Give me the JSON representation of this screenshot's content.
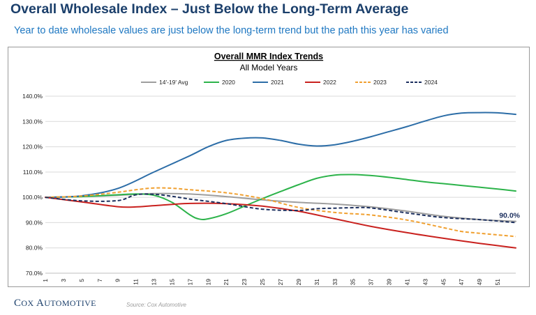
{
  "header": {
    "title": "Overall Wholesale Index – Just Below the Long-Term Average",
    "subtitle": "Year to date wholesale values are just below the long-term trend but the path this year has varied"
  },
  "footer": {
    "logo_text_cap1": "C",
    "logo_text_rest1": "OX ",
    "logo_text_cap2": "A",
    "logo_text_rest2": "UTOMOTIVE",
    "source": "Source: Cox Automotive"
  },
  "chart_data": {
    "type": "line",
    "title": "Overall MMR Index Trends",
    "subtitle": "All Model Years",
    "x_ticks": [
      "1",
      "3",
      "5",
      "7",
      "9",
      "11",
      "13",
      "15",
      "17",
      "19",
      "21",
      "23",
      "25",
      "27",
      "29",
      "31",
      "33",
      "35",
      "37",
      "39",
      "41",
      "43",
      "45",
      "47",
      "49",
      "51"
    ],
    "x_range": [
      1,
      53
    ],
    "ylim": [
      70,
      140
    ],
    "y_ticks": [
      "70.0%",
      "80.0%",
      "90.0%",
      "100.0%",
      "110.0%",
      "120.0%",
      "130.0%",
      "140.0%"
    ],
    "grid": "horizontal",
    "legend_position": "top",
    "annotation": {
      "text": "90.0%",
      "x": 53,
      "y": 90.0
    },
    "series": [
      {
        "name": "14'-19' Avg",
        "color": "#9e9e9e",
        "dash": "solid",
        "x": [
          1,
          5,
          9,
          13,
          17,
          21,
          25,
          29,
          33,
          37,
          41,
          45,
          49,
          53
        ],
        "y": [
          100,
          100.3,
          100.8,
          101.5,
          101.3,
          100.3,
          99,
          98,
          97.3,
          96.2,
          94.5,
          92.5,
          91.2,
          90.5
        ]
      },
      {
        "name": "2020",
        "color": "#2cb34a",
        "dash": "solid",
        "x": [
          1,
          5,
          9,
          11,
          13,
          15,
          17,
          18,
          19,
          21,
          23,
          25,
          27,
          29,
          31,
          33,
          35,
          37,
          39,
          41,
          43,
          45,
          47,
          49,
          51,
          53
        ],
        "y": [
          100,
          100.3,
          101,
          101.3,
          100.8,
          98,
          93,
          91.4,
          91.5,
          93.5,
          96.5,
          99.5,
          102.3,
          105,
          107.5,
          108.8,
          109,
          108.6,
          107.9,
          107,
          106.1,
          105.4,
          104.7,
          104,
          103.3,
          102.5
        ]
      },
      {
        "name": "2021",
        "color": "#2c6da7",
        "dash": "solid",
        "x": [
          1,
          5,
          9,
          13,
          17,
          19,
          21,
          23,
          25,
          27,
          29,
          31,
          33,
          35,
          37,
          39,
          41,
          43,
          45,
          47,
          49,
          51,
          53
        ],
        "y": [
          100,
          100.6,
          103.5,
          110,
          116.5,
          120,
          122.5,
          123.4,
          123.5,
          122.5,
          121,
          120.3,
          120.8,
          122.2,
          124,
          126,
          128,
          130.2,
          132.2,
          133.3,
          133.5,
          133.4,
          132.8
        ]
      },
      {
        "name": "2022",
        "color": "#c9211e",
        "dash": "solid",
        "x": [
          1,
          5,
          9,
          11,
          13,
          17,
          21,
          25,
          29,
          33,
          37,
          41,
          45,
          49,
          53
        ],
        "y": [
          100,
          98.2,
          96.3,
          96.2,
          96.7,
          97.6,
          97.5,
          96.5,
          94.5,
          91.5,
          88.5,
          86,
          83.8,
          81.8,
          80
        ]
      },
      {
        "name": "2023",
        "color": "#f0a030",
        "dash": "dashed",
        "x": [
          1,
          5,
          9,
          11,
          13,
          15,
          17,
          21,
          25,
          29,
          33,
          37,
          41,
          45,
          47,
          49,
          53
        ],
        "y": [
          100,
          100.5,
          102,
          103,
          103.7,
          103.6,
          103,
          101.8,
          99.5,
          96,
          94,
          93,
          91,
          88,
          86.5,
          85.8,
          84.5
        ]
      },
      {
        "name": "2024",
        "color": "#1c2f5e",
        "dash": "dashed",
        "x": [
          1,
          5,
          9,
          11,
          13,
          15,
          17,
          21,
          25,
          29,
          31,
          33,
          35,
          37,
          41,
          45,
          49,
          53
        ],
        "y": [
          100,
          98.6,
          98.7,
          101,
          101.2,
          100.4,
          99.3,
          97.5,
          95.3,
          94.8,
          95.5,
          95.7,
          95.9,
          95.8,
          93.8,
          92,
          91.2,
          90
        ]
      }
    ]
  }
}
